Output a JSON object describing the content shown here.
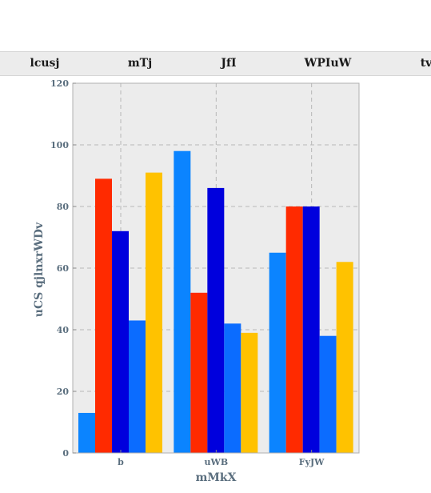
{
  "tabs": [
    {
      "label": "lcusj"
    },
    {
      "label": "mTj"
    },
    {
      "label": "JfI"
    },
    {
      "label": "WPIuW"
    },
    {
      "label": "tv"
    }
  ],
  "chart_data": {
    "type": "bar",
    "categories": [
      "b",
      "uWB",
      "FyJW"
    ],
    "series": [
      {
        "values": [
          13,
          98,
          65
        ],
        "color": "#0b84ff"
      },
      {
        "values": [
          89,
          52,
          80
        ],
        "color": "#ff2a00"
      },
      {
        "values": [
          72,
          86,
          80
        ],
        "color": "#0000dd"
      },
      {
        "values": [
          43,
          42,
          38
        ],
        "color": "#0b6cff"
      },
      {
        "values": [
          91,
          39,
          62
        ],
        "color": "#ffc200"
      }
    ],
    "title": "",
    "xlabel": "mMkX",
    "ylabel": "uCS qjlnxrWDv",
    "ylim": [
      0,
      120
    ],
    "yticks": [
      0,
      20,
      40,
      60,
      80,
      100,
      120
    ],
    "grid": true,
    "background": "#ececec"
  }
}
